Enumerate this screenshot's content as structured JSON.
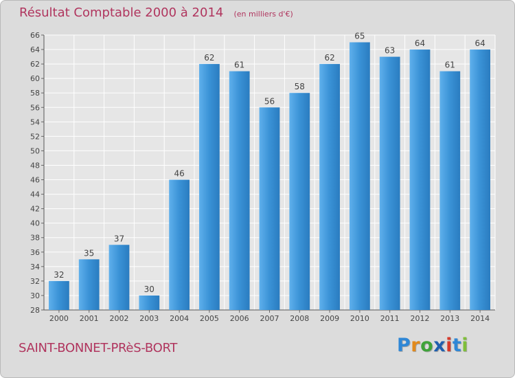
{
  "title": "Résultat Comptable 2000 à 2014",
  "subtitle": "(en milliers d'€)",
  "town": "SAINT-BONNET-PRèS-BORT",
  "logo": {
    "text": "Proxiti",
    "letter_colors": [
      "#2f87d6",
      "#e2891b",
      "#3fa33a",
      "#1f5fae",
      "#d63a2b",
      "#2f87d6",
      "#7fbf3a"
    ]
  },
  "colors": {
    "bar": "#3a92d6",
    "bar_light": "#5fb0ec",
    "bar_dark": "#2a7cc0",
    "plot_bg": "#e6e6e6",
    "grid": "#ffffff",
    "text": "#444444",
    "title": "#b0355e"
  },
  "chart_data": {
    "type": "bar",
    "title": "Résultat Comptable 2000 à 2014",
    "subtitle": "(en milliers d'€)",
    "xlabel": "",
    "ylabel": "",
    "categories": [
      "2000",
      "2001",
      "2002",
      "2003",
      "2004",
      "2005",
      "2006",
      "2007",
      "2008",
      "2009",
      "2010",
      "2011",
      "2012",
      "2013",
      "2014"
    ],
    "values": [
      32,
      35,
      37,
      30,
      46,
      62,
      61,
      56,
      58,
      62,
      65,
      63,
      64,
      61,
      64
    ],
    "ylim": [
      28,
      66
    ],
    "yticks": [
      28,
      30,
      32,
      34,
      36,
      38,
      40,
      42,
      44,
      46,
      48,
      50,
      52,
      54,
      56,
      58,
      60,
      62,
      64,
      66
    ],
    "grid": true,
    "legend": "none"
  }
}
